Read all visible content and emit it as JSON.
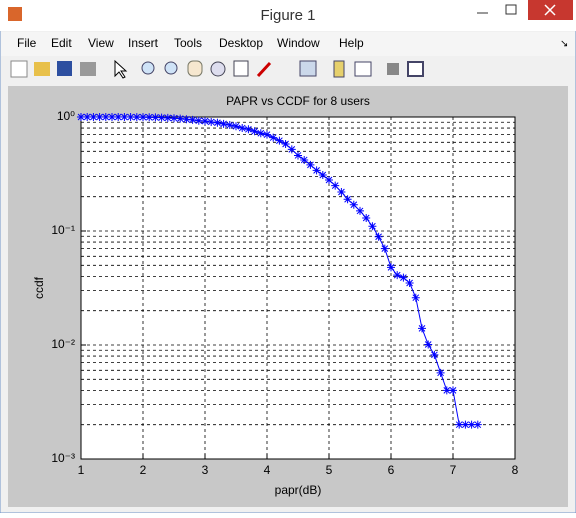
{
  "window": {
    "title": "Figure 1",
    "menu": [
      "File",
      "Edit",
      "View",
      "Insert",
      "Tools",
      "Desktop",
      "Window",
      "Help"
    ]
  },
  "chart_data": {
    "type": "line",
    "title": "PAPR vs CCDF for 8 users",
    "x_label": "papr(dB)",
    "y_label": "ccdf",
    "x": [
      1.0,
      1.1,
      1.2,
      1.3,
      1.4,
      1.5,
      1.6,
      1.7,
      1.8,
      1.9,
      2.0,
      2.1,
      2.2,
      2.3,
      2.4,
      2.5,
      2.6,
      2.7,
      2.8,
      2.9,
      3.0,
      3.1,
      3.2,
      3.3,
      3.4,
      3.5,
      3.6,
      3.7,
      3.8,
      3.9,
      4.0,
      4.1,
      4.2,
      4.3,
      4.4,
      4.5,
      4.6,
      4.7,
      4.8,
      4.9,
      5.0,
      5.1,
      5.2,
      5.3,
      5.4,
      5.5,
      5.6,
      5.7,
      5.8,
      5.9,
      6.0,
      6.1,
      6.2,
      6.3,
      6.4,
      6.5,
      6.6,
      6.7,
      6.8,
      6.9,
      7.0,
      7.1,
      7.2,
      7.3,
      7.4
    ],
    "series": [
      {
        "color": "#0000ff",
        "marker": "*",
        "values": [
          1,
          1,
          1,
          1,
          1,
          1,
          1,
          1,
          0.999,
          0.998,
          0.997,
          0.995,
          0.992,
          0.988,
          0.983,
          0.976,
          0.967,
          0.956,
          0.943,
          0.928,
          0.92,
          0.905,
          0.89,
          0.87,
          0.85,
          0.83,
          0.8,
          0.78,
          0.75,
          0.72,
          0.7,
          0.66,
          0.62,
          0.58,
          0.52,
          0.46,
          0.42,
          0.38,
          0.34,
          0.31,
          0.28,
          0.25,
          0.22,
          0.19,
          0.17,
          0.15,
          0.13,
          0.11,
          0.089,
          0.07,
          0.048,
          0.041,
          0.039,
          0.035,
          0.026,
          0.014,
          0.0101,
          0.0082,
          0.0057,
          0.004,
          0.004,
          0.002,
          0.002,
          0.002,
          0.002
        ]
      }
    ],
    "xlim": [
      1,
      8
    ],
    "xticks": [
      1,
      2,
      3,
      4,
      5,
      6,
      7,
      8
    ],
    "ylim": [
      0.001,
      1
    ],
    "yscale": "log",
    "yticks": [
      {
        "value": 0.001,
        "label": "10⁻³"
      },
      {
        "value": 0.01,
        "label": "10⁻²"
      },
      {
        "value": 0.1,
        "label": "10⁻¹"
      },
      {
        "value": 1,
        "label": "10⁰"
      }
    ],
    "yminorticks": [
      0.002,
      0.003,
      0.004,
      0.005,
      0.006,
      0.007,
      0.008,
      0.009,
      0.02,
      0.03,
      0.04,
      0.05,
      0.06,
      0.07,
      0.08,
      0.09,
      0.2,
      0.3,
      0.4,
      0.5,
      0.6,
      0.7,
      0.8,
      0.9
    ],
    "grid": true
  }
}
